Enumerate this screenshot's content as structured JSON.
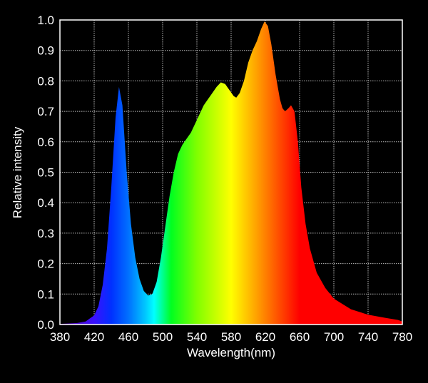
{
  "chart_data": {
    "type": "area",
    "title": "",
    "xlabel": "Wavelength(nm)",
    "ylabel": "Relative intensity",
    "xlim": [
      380,
      780
    ],
    "ylim": [
      0,
      1.0
    ],
    "xticks": [
      380,
      420,
      460,
      500,
      540,
      580,
      620,
      660,
      700,
      740,
      780
    ],
    "yticks": [
      "0.0",
      "0.1",
      "0.2",
      "0.3",
      "0.4",
      "0.5",
      "0.6",
      "0.7",
      "0.8",
      "0.9",
      "1.0"
    ],
    "grid": true,
    "background": "#000000",
    "fill": "spectral gradient by wavelength",
    "color_stops": [
      {
        "nm": 380,
        "color": "#5a00a0"
      },
      {
        "nm": 420,
        "color": "#3a10ff"
      },
      {
        "nm": 440,
        "color": "#0030ff"
      },
      {
        "nm": 460,
        "color": "#0070ff"
      },
      {
        "nm": 480,
        "color": "#00c8ff"
      },
      {
        "nm": 490,
        "color": "#00ffff"
      },
      {
        "nm": 510,
        "color": "#00ff20"
      },
      {
        "nm": 540,
        "color": "#80ff00"
      },
      {
        "nm": 580,
        "color": "#ffff00"
      },
      {
        "nm": 600,
        "color": "#ffc000"
      },
      {
        "nm": 620,
        "color": "#ff8000"
      },
      {
        "nm": 640,
        "color": "#ff4000"
      },
      {
        "nm": 660,
        "color": "#ff0000"
      },
      {
        "nm": 780,
        "color": "#ff0000"
      }
    ],
    "x": [
      380,
      400,
      410,
      420,
      425,
      430,
      435,
      440,
      445,
      449,
      453,
      458,
      463,
      468,
      473,
      478,
      483,
      488,
      493,
      498,
      503,
      508,
      513,
      518,
      523,
      528,
      533,
      538,
      543,
      548,
      553,
      558,
      563,
      568,
      573,
      578,
      583,
      586,
      590,
      595,
      600,
      605,
      610,
      615,
      619,
      623,
      627,
      632,
      637,
      640,
      643,
      647,
      650,
      654,
      658,
      662,
      667,
      672,
      680,
      690,
      700,
      720,
      740,
      760,
      775,
      780
    ],
    "y": [
      0.002,
      0.005,
      0.01,
      0.03,
      0.06,
      0.13,
      0.25,
      0.45,
      0.68,
      0.78,
      0.72,
      0.5,
      0.33,
      0.22,
      0.15,
      0.11,
      0.095,
      0.1,
      0.14,
      0.22,
      0.32,
      0.42,
      0.5,
      0.56,
      0.59,
      0.61,
      0.63,
      0.66,
      0.69,
      0.72,
      0.74,
      0.76,
      0.78,
      0.795,
      0.79,
      0.77,
      0.75,
      0.745,
      0.76,
      0.8,
      0.86,
      0.9,
      0.93,
      0.97,
      0.995,
      0.98,
      0.92,
      0.82,
      0.74,
      0.71,
      0.7,
      0.71,
      0.72,
      0.7,
      0.6,
      0.45,
      0.33,
      0.25,
      0.17,
      0.12,
      0.085,
      0.05,
      0.032,
      0.022,
      0.015,
      0.01
    ]
  }
}
